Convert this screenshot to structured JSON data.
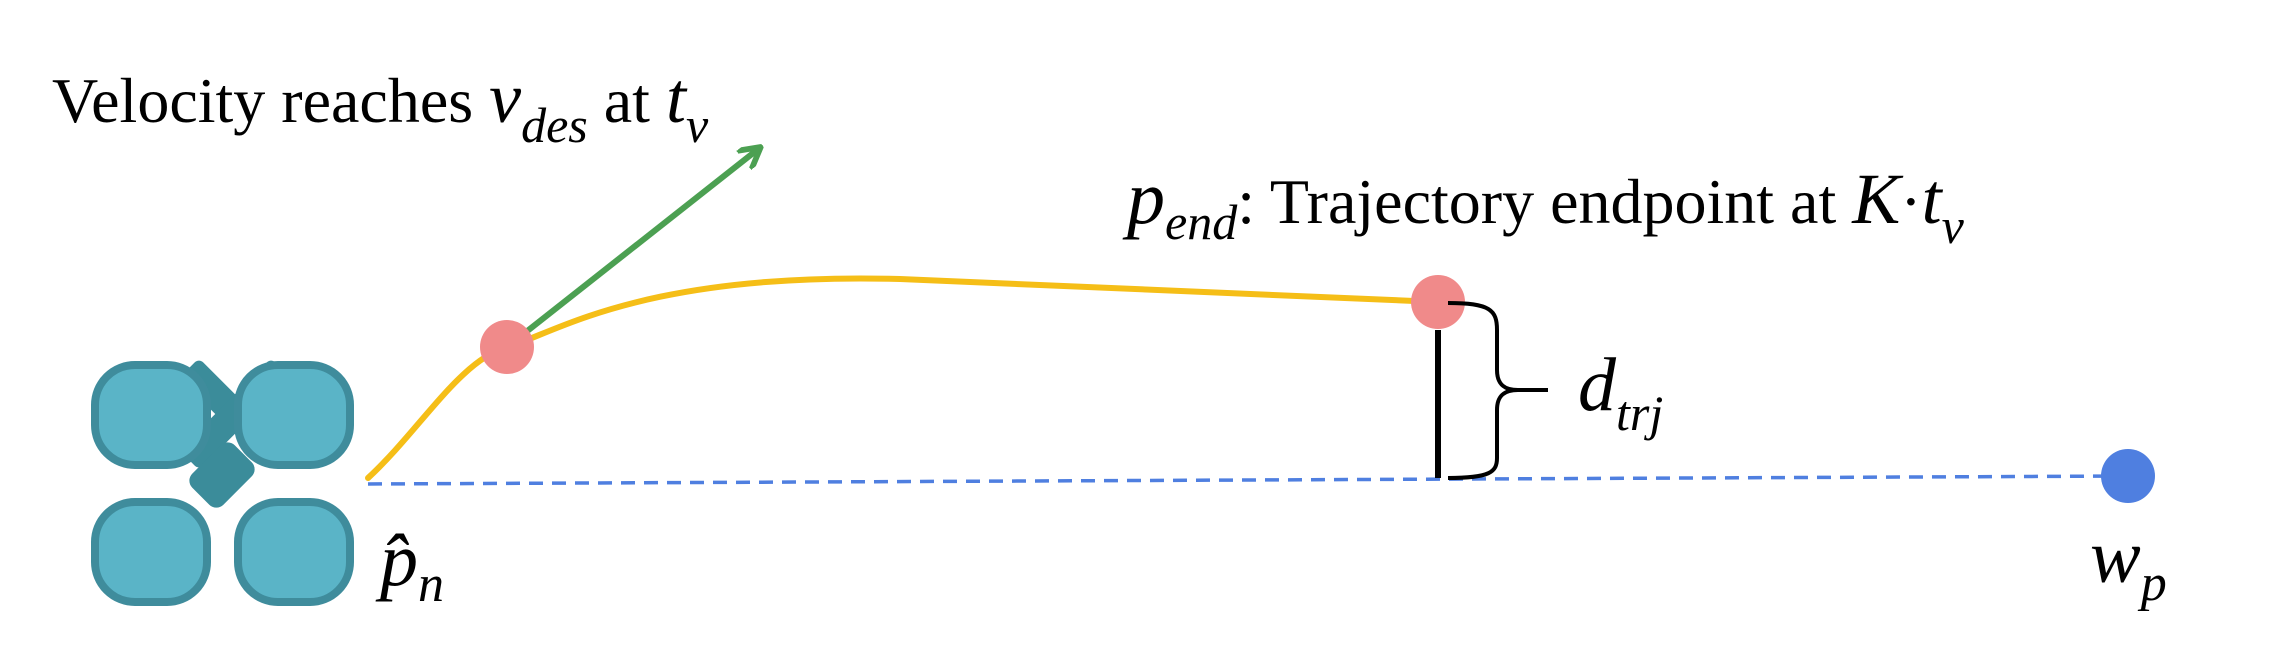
{
  "labels": {
    "velocity_prefix": "Velocity reaches ",
    "velocity_var": "v",
    "velocity_sub": "des",
    "velocity_mid": " at ",
    "time_var": "t",
    "time_sub": "v",
    "pend_var": "p",
    "pend_sub": "end",
    "pend_desc": ": Trajectory endpoint at ",
    "K": "K",
    "dot": "·",
    "t2_var": "t",
    "t2_sub": "v",
    "d_var": "d",
    "d_sub": "trj",
    "phat_var": "p̂",
    "phat_sub": "n",
    "w_var": "w",
    "w_sub": "p"
  },
  "colors": {
    "trajectory": "#F5BE17",
    "velocity_arrow": "#4CA052",
    "dashed_line": "#4F7FE0",
    "waypoint": "#4F7FE0",
    "marker": "#F08A8A",
    "drone_body": "#5AB4C7",
    "drone_border": "#3F8C9C",
    "drone_center": "#3B8C9A",
    "ink": "#000000"
  },
  "icons": {
    "drone": "quadrotor-drone-icon"
  }
}
